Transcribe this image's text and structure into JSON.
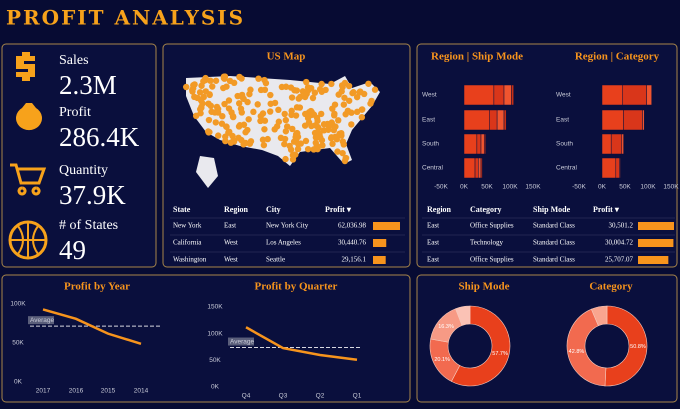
{
  "title": "PROFIT ANALYSIS",
  "kpis": [
    {
      "label": "Sales",
      "value": "2.3M"
    },
    {
      "label": "Profit",
      "value": "286.4K"
    },
    {
      "label": "Quantity",
      "value": "37.9K"
    },
    {
      "label": "# of States",
      "value": "49"
    }
  ],
  "map": {
    "title": "US Map"
  },
  "tables": [
    {
      "headers": [
        "State",
        "Region",
        "City",
        "Profit ▾"
      ],
      "rows": [
        [
          "New York",
          "East",
          "New York City",
          {
            "value": 62036.98,
            "label": "62,036.98"
          }
        ],
        [
          "California",
          "West",
          "Los Angeles",
          {
            "value": 30440.76,
            "label": "30,440.76"
          }
        ],
        [
          "Washington",
          "West",
          "Seattle",
          {
            "value": 29156.1,
            "label": "29,156.1"
          }
        ]
      ]
    },
    {
      "headers": [
        "Region",
        "Category",
        "Ship Mode",
        "Profit ▾"
      ],
      "rows": [
        [
          "East",
          "Office Supplies",
          "Standard Class",
          {
            "value": 30501.2,
            "label": "30,501.2"
          }
        ],
        [
          "East",
          "Technology",
          "Standard Class",
          {
            "value": 30004.72,
            "label": "30,004.72"
          }
        ],
        [
          "East",
          "Office Supplies",
          "Standard Class",
          {
            "value": 25707.07,
            "label": "25,707.07"
          }
        ]
      ]
    }
  ],
  "chart_data": [
    {
      "type": "hbar-stacked",
      "title": "Region | Ship Mode",
      "categories": [
        "West",
        "East",
        "South",
        "Central"
      ],
      "series": [
        {
          "color": "#e8401c",
          "values": [
            65000,
            55000,
            28000,
            24000
          ]
        },
        {
          "color": "#d9361a",
          "values": [
            22000,
            17000,
            9000,
            7000
          ]
        },
        {
          "color": "#f0552f",
          "values": [
            16000,
            15000,
            7000,
            6000
          ]
        },
        {
          "color": "#c42f16",
          "values": [
            5000,
            5000,
            3000,
            3000
          ]
        }
      ],
      "xlim": [
        -50000,
        150000
      ],
      "xticks": [
        {
          "value": -50000,
          "label": "-50K"
        },
        {
          "value": 0,
          "label": "0K"
        },
        {
          "value": 50000,
          "label": "50K"
        },
        {
          "value": 100000,
          "label": "100K"
        },
        {
          "value": 150000,
          "label": "150K"
        }
      ]
    },
    {
      "type": "hbar-stacked",
      "title": "Region | Category",
      "categories": [
        "West",
        "East",
        "South",
        "Central"
      ],
      "series": [
        {
          "color": "#e8401c",
          "values": [
            45000,
            47000,
            20000,
            30000
          ]
        },
        {
          "color": "#d9361a",
          "values": [
            52000,
            41000,
            23000,
            8000
          ]
        },
        {
          "color": "#f0552f",
          "values": [
            11000,
            4000,
            4000,
            2000
          ]
        }
      ],
      "xlim": [
        -50000,
        150000
      ],
      "xticks": [
        {
          "value": -50000,
          "label": "-50K"
        },
        {
          "value": 0,
          "label": "0K"
        },
        {
          "value": 50000,
          "label": "50K"
        },
        {
          "value": 100000,
          "label": "100K"
        },
        {
          "value": 150000,
          "label": "150K"
        }
      ]
    },
    {
      "type": "line",
      "title": "Profit by Year",
      "categories": [
        "2017",
        "2016",
        "2015",
        "2014"
      ],
      "series": [
        {
          "color": "#f7941d",
          "values": [
            93000,
            81000,
            62000,
            49000
          ]
        }
      ],
      "ylim": [
        0,
        100000
      ],
      "yticks": [
        {
          "value": 0,
          "label": "0K"
        },
        {
          "value": 50000,
          "label": "50K"
        },
        {
          "value": 100000,
          "label": "100K"
        }
      ],
      "reference": {
        "label": "Average",
        "value": 71600
      }
    },
    {
      "type": "line",
      "title": "Profit by Quarter",
      "categories": [
        "Q4",
        "Q3",
        "Q2",
        "Q1"
      ],
      "series": [
        {
          "color": "#f7941d",
          "values": [
            112000,
            73000,
            60000,
            51000
          ]
        }
      ],
      "ylim": [
        0,
        150000
      ],
      "yticks": [
        {
          "value": 0,
          "label": "0K"
        },
        {
          "value": 50000,
          "label": "50K"
        },
        {
          "value": 100000,
          "label": "100K"
        },
        {
          "value": 150000,
          "label": "150K"
        }
      ],
      "reference": {
        "label": "Average",
        "value": 74000
      }
    },
    {
      "type": "donut",
      "title": "Ship Mode",
      "values": [
        57.7,
        20.1,
        16.3,
        5.9
      ],
      "value_labels": [
        "57.7%",
        "20.1%",
        "16.3%",
        null
      ],
      "colors": [
        "#e8401c",
        "#f26a4f",
        "#f79a85",
        "#fbc2b5"
      ]
    },
    {
      "type": "donut",
      "title": "Category",
      "values": [
        50.8,
        42.8,
        6.4
      ],
      "value_labels": [
        "50.8%",
        "42.8%",
        null
      ],
      "colors": [
        "#e8401c",
        "#f26a4f",
        "#f9a58f"
      ]
    }
  ]
}
